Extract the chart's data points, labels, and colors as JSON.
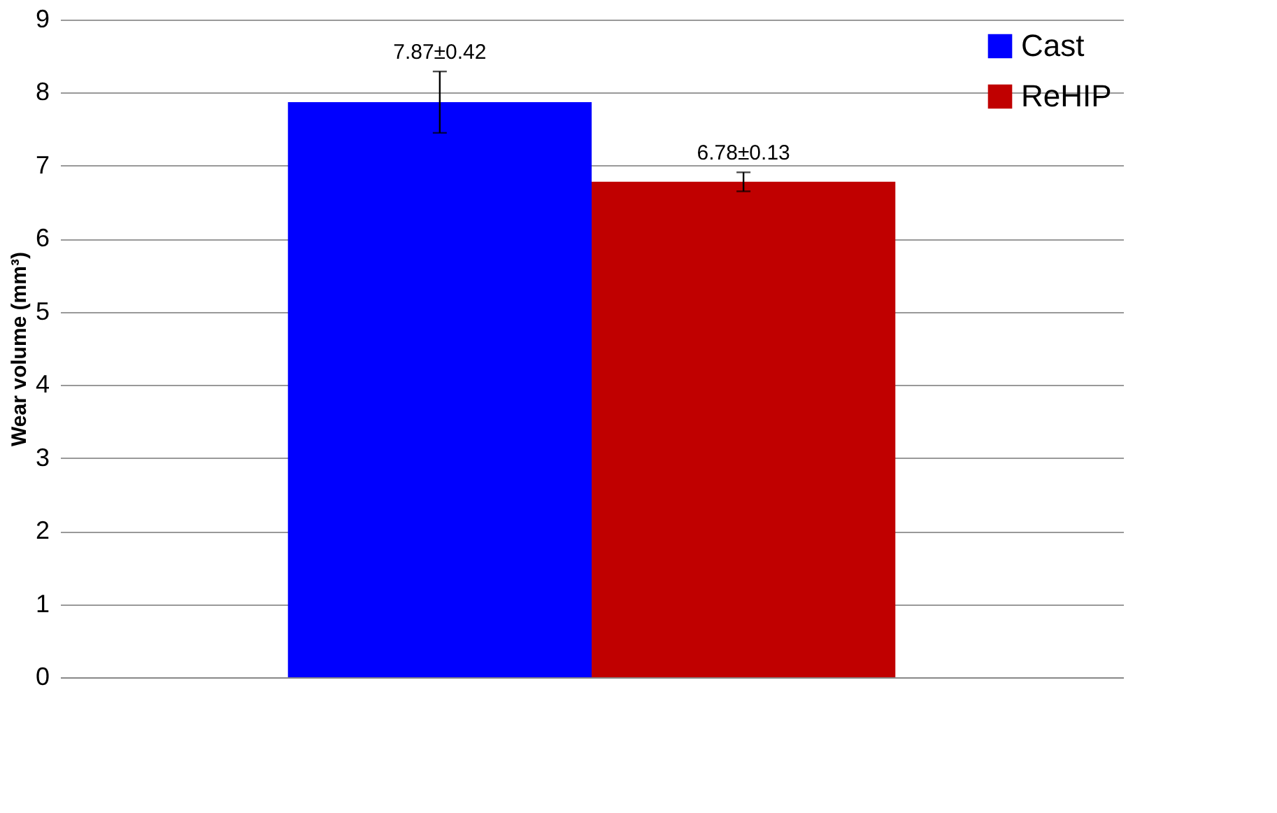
{
  "chart_data": {
    "type": "bar",
    "ylabel": "Wear volume (mm³)",
    "categories": [
      null
    ],
    "series": [
      {
        "name": "Cast",
        "color": "#0000ff",
        "values": [
          7.87
        ],
        "errors": [
          0.42
        ],
        "value_labels": [
          "7.87±0.42"
        ]
      },
      {
        "name": "ReHIP",
        "color": "#c00000",
        "values": [
          6.78
        ],
        "errors": [
          0.13
        ],
        "value_labels": [
          "6.78±0.13"
        ]
      }
    ],
    "ylim": [
      0,
      9
    ],
    "yticks": [
      0,
      1,
      2,
      3,
      4,
      5,
      6,
      7,
      8,
      9
    ],
    "grid": "y",
    "legend": "top right",
    "tick_labels": "y"
  }
}
